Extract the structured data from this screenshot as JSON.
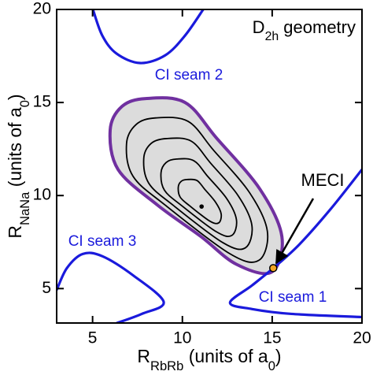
{
  "chart_data": {
    "type": "contour",
    "annotation": [
      {
        "text": "D"
      },
      {
        "text": "2h",
        "sub": true
      },
      {
        "text": " geometry"
      }
    ],
    "xlabel": [
      {
        "text": "R"
      },
      {
        "text": "RbRb",
        "sub": true
      },
      {
        "text": " (units of a"
      },
      {
        "text": "0",
        "sub": true
      },
      {
        "text": ")"
      }
    ],
    "ylabel": [
      {
        "text": "R"
      },
      {
        "text": "NaNa",
        "sub": true
      },
      {
        "text": " (units of a"
      },
      {
        "text": "0",
        "sub": true
      },
      {
        "text": ")"
      }
    ],
    "xlim": [
      3,
      20
    ],
    "ylim": [
      3.15,
      20
    ],
    "xticks": [
      5,
      10,
      15,
      20
    ],
    "yticks": [
      5,
      10,
      15,
      20
    ],
    "seams": [
      {
        "label": "CI seam 1",
        "color": "#1a1adc",
        "x": [
          20,
          18.26,
          16.51,
          15.06,
          13.88,
          12.65,
          13.88,
          16.07,
          20
        ],
        "y": [
          11.4,
          9.28,
          7.37,
          6.1,
          5.17,
          4.24,
          3.9,
          3.64,
          3.47
        ]
      },
      {
        "label": "CI seam 2",
        "color": "#1a1adc",
        "x": [
          5.02,
          5.54,
          6.33,
          7.65,
          9.05,
          10.15,
          11.16
        ],
        "y": [
          20,
          18.6,
          17.63,
          17.12,
          17.54,
          18.6,
          20
        ]
      },
      {
        "label": "CI seam 3",
        "color": "#1a1adc",
        "x": [
          3,
          3.57,
          4.45,
          5.54,
          7.3,
          8.96,
          7.74,
          6.33
        ],
        "y": [
          4.92,
          6.1,
          6.86,
          6.74,
          5.68,
          4.28,
          3.64,
          3.14
        ]
      }
    ],
    "contours": [
      {
        "color": "#7030a0",
        "fill": "#dcdcdc",
        "x": [
          7.96,
          10.15,
          11.9,
          14.32,
          15.54,
          14.97,
          13,
          11.03,
          8.61,
          6.42,
          5.98,
          6.64
        ],
        "y": [
          15.21,
          15,
          13.09,
          10.34,
          7.8,
          5.89,
          6.31,
          7.8,
          9.49,
          11.4,
          13.52,
          14.79
        ]
      },
      {
        "color": "#000000",
        "x": [
          8.51,
          10.31,
          11.74,
          13.73,
          14.73,
          14.26,
          12.65,
          9.05,
          7.25,
          6.89,
          7.43
        ],
        "y": [
          14.17,
          13.99,
          12.43,
          10.17,
          8.09,
          6.52,
          6.87,
          9.48,
          11.04,
          12.78,
          13.82
        ]
      },
      {
        "color": "#000000",
        "x": [
          9.1,
          10.48,
          11.58,
          13.1,
          13.87,
          13.51,
          12.27,
          9.51,
          8.13,
          7.85,
          8.26
        ],
        "y": [
          13.06,
          12.93,
          11.73,
          10,
          8.4,
          7.19,
          7.46,
          9.46,
          10.66,
          12,
          12.8
        ]
      },
      {
        "color": "#000000",
        "x": [
          9.68,
          10.64,
          11.41,
          12.48,
          13.01,
          12.76,
          11.9,
          9.97,
          9,
          8.81,
          9.1
        ],
        "y": [
          11.96,
          11.87,
          11.03,
          9.82,
          8.7,
          7.86,
          8.05,
          9.45,
          10.29,
          11.22,
          11.78
        ]
      },
      {
        "color": "#000000",
        "x": [
          10.26,
          10.81,
          11.25,
          11.85,
          12.16,
          12.02,
          11.52,
          10.43,
          9.88,
          9.77,
          9.93
        ],
        "y": [
          10.86,
          10.81,
          10.33,
          9.64,
          9.01,
          8.53,
          8.63,
          9.43,
          9.91,
          10.44,
          10.76
        ]
      }
    ],
    "center": {
      "x": 11.07,
      "y": 9.41,
      "color": "#000000"
    },
    "meci": {
      "label": "MECI",
      "x": 15.06,
      "y": 6.1,
      "color": "#f5a623"
    }
  }
}
